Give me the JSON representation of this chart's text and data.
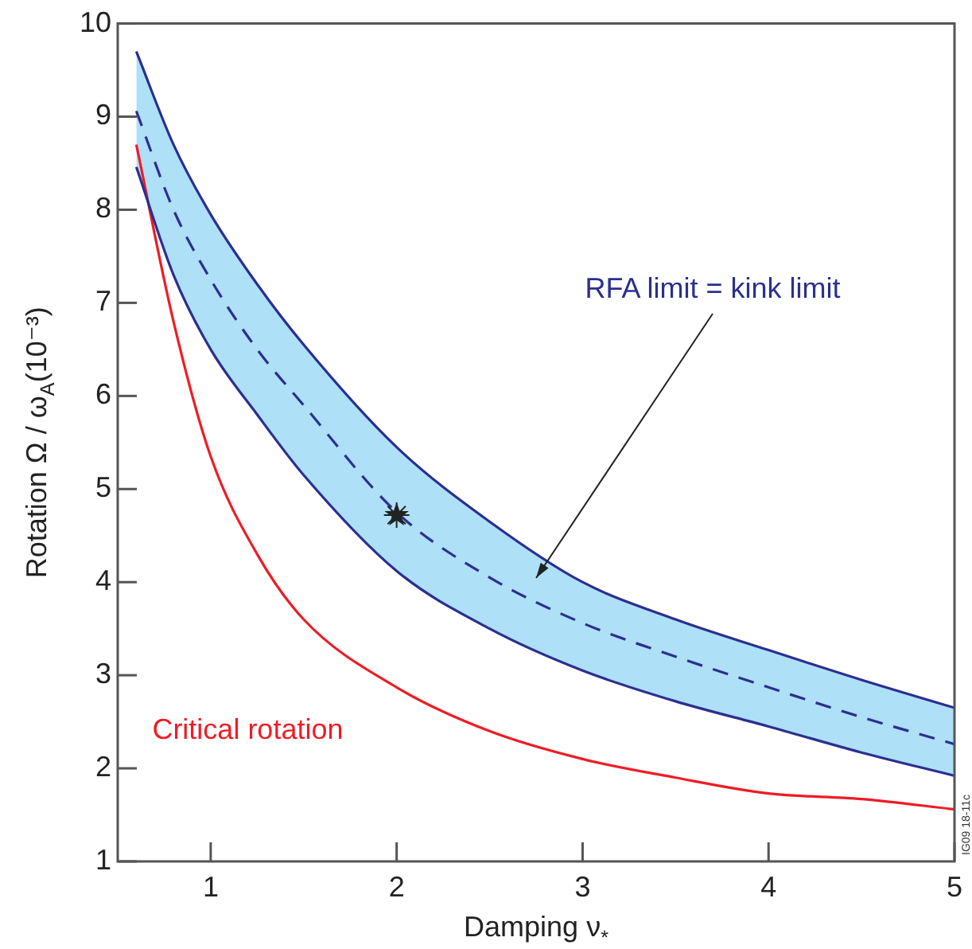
{
  "chart_data": {
    "type": "line",
    "xlabel": "Damping ν$_{*}$",
    "ylabel": "Rotation Ω / ω$_{A}$(10⁻³)",
    "x": [
      0.6,
      0.8,
      1,
      1.25,
      1.5,
      2,
      2.5,
      3,
      3.5,
      4,
      4.5,
      5
    ],
    "series": [
      {
        "color": "#2b2f8f",
        "line_style": "solid",
        "values": [
          9.7,
          8.7,
          7.95,
          7.2,
          6.55,
          5.45,
          4.65,
          4.0,
          3.6,
          3.27,
          2.95,
          2.65
        ]
      },
      {
        "color": "#2b2f8f",
        "line_style": "dashed",
        "values": [
          9.06,
          8.0,
          7.25,
          6.5,
          5.9,
          4.75,
          4.05,
          3.56,
          3.2,
          2.87,
          2.55,
          2.26
        ],
        "lower": [
          8.46,
          7.3,
          6.5,
          5.8,
          5.15,
          4.12,
          3.5,
          3.05,
          2.72,
          2.45,
          2.17,
          1.92
        ],
        "upper": [
          9.7,
          8.7,
          7.95,
          7.2,
          6.55,
          5.45,
          4.65,
          4.0,
          3.6,
          3.27,
          2.95,
          2.65
        ]
      },
      {
        "color": "#2b2f8f",
        "line_style": "solid",
        "values": [
          8.46,
          7.3,
          6.5,
          5.8,
          5.15,
          4.12,
          3.5,
          3.05,
          2.72,
          2.45,
          2.17,
          1.92
        ]
      },
      {
        "name": "Critical rotation",
        "color": "#ee1c25",
        "line_style": "solid",
        "values": [
          8.7,
          6.8,
          5.35,
          4.3,
          3.6,
          2.87,
          2.4,
          2.1,
          1.9,
          1.73,
          1.67,
          1.56
        ]
      },
      {
        "type": "scatter",
        "x": [
          2
        ],
        "color": "#222222",
        "marker": "star",
        "values": [
          4.72
        ]
      }
    ],
    "annotations": [
      "RFA limit = kink limit",
      "IG09 18-11c"
    ],
    "xlim": [
      0.5,
      5
    ],
    "xticks": [
      1,
      2,
      3,
      4,
      5
    ],
    "ylim": [
      1,
      10
    ],
    "yticks": [
      1,
      2,
      3,
      4,
      5,
      6,
      7,
      8,
      9,
      10
    ],
    "grid": false,
    "legend": false,
    "marker": "none"
  }
}
